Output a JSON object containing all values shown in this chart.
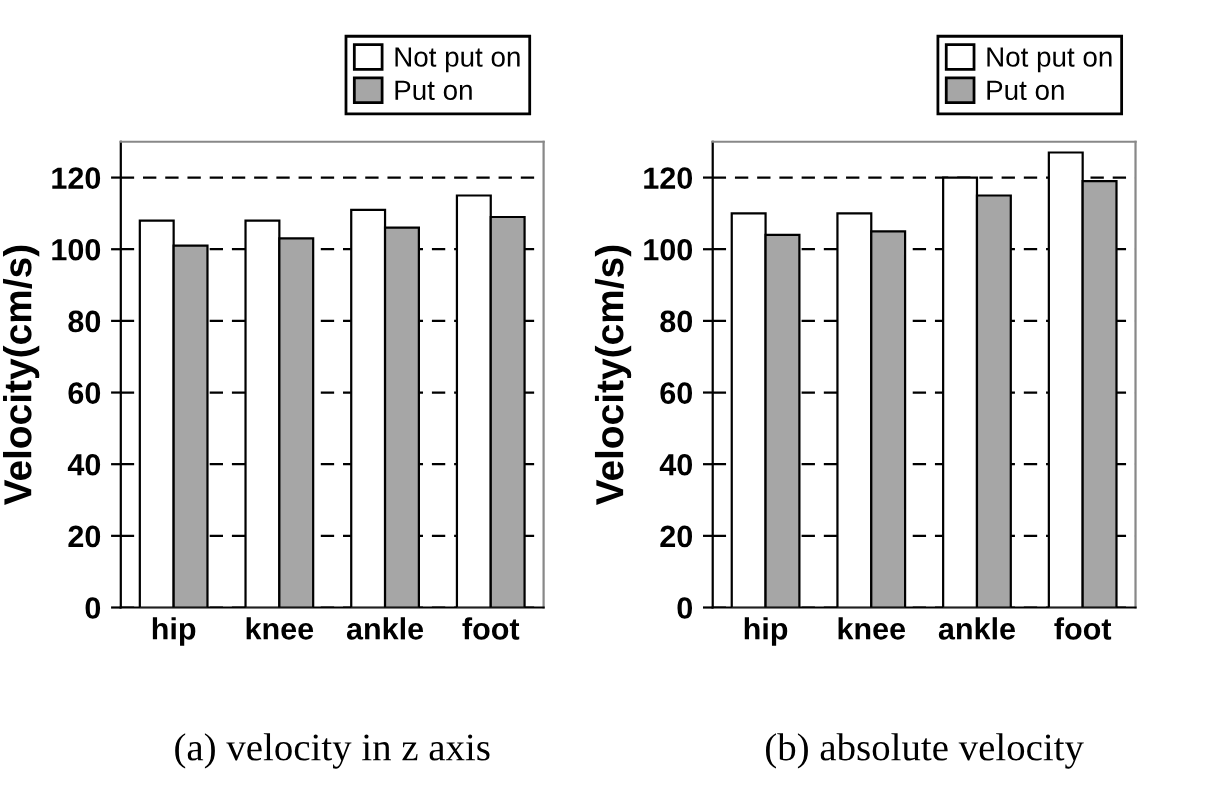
{
  "chart_data": [
    {
      "type": "bar",
      "categories": [
        "hip",
        "knee",
        "ankle",
        "foot"
      ],
      "ylabel": "Velocity(cm/s)",
      "ylim": [
        0,
        130
      ],
      "yticks": [
        0,
        20,
        40,
        60,
        80,
        100,
        120
      ],
      "grid": "y",
      "legend": "top right",
      "annotations": [
        "(a) velocity in z axis"
      ],
      "series": [
        {
          "name": "Not put on",
          "color": "#ffffff",
          "values": [
            108,
            108,
            111,
            115
          ]
        },
        {
          "name": "Put on",
          "color": "#a6a6a6",
          "values": [
            101,
            103,
            106,
            109
          ]
        }
      ]
    },
    {
      "type": "bar",
      "categories": [
        "hip",
        "knee",
        "ankle",
        "foot"
      ],
      "ylabel": "Velocity(cm/s)",
      "ylim": [
        0,
        130
      ],
      "yticks": [
        0,
        20,
        40,
        60,
        80,
        100,
        120
      ],
      "grid": "y",
      "legend": "top right",
      "annotations": [
        "(b) absolute velocity"
      ],
      "series": [
        {
          "name": "Not put on",
          "color": "#ffffff",
          "values": [
            110,
            110,
            120,
            127
          ]
        },
        {
          "name": "Put on",
          "color": "#a6a6a6",
          "values": [
            104,
            105,
            115,
            119
          ]
        }
      ]
    }
  ]
}
